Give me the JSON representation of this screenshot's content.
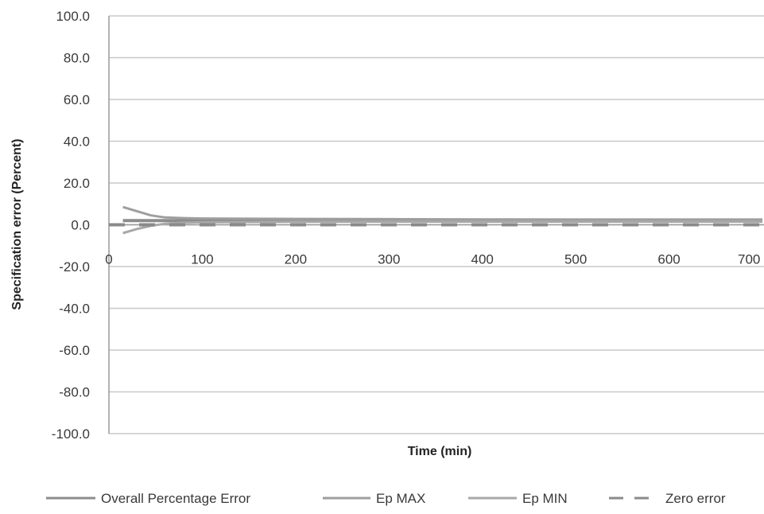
{
  "chart_data": {
    "type": "line",
    "xlabel": "Time (min)",
    "ylabel": "Specification error (Percent)",
    "xlim": [
      0,
      700
    ],
    "ylim": [
      -100,
      100
    ],
    "x_ticks": [
      "0",
      "100",
      "200",
      "300",
      "400",
      "500",
      "600",
      "700"
    ],
    "y_ticks": [
      "100.0",
      "80.0",
      "60.0",
      "40.0",
      "20.0",
      "0.0",
      "-20.0",
      "-40.0",
      "-60.0",
      "-80.0",
      "-100.0"
    ],
    "grid": true,
    "legend_position": "bottom",
    "series": [
      {
        "name": "Overall Percentage Error",
        "color": "#8c8c8c",
        "style": "solid",
        "x": [
          15,
          30,
          60,
          100,
          200,
          300,
          400,
          500,
          600,
          700
        ],
        "y": [
          2.0,
          2.0,
          2.0,
          2.0,
          2.0,
          2.0,
          2.0,
          2.0,
          2.0,
          2.0
        ]
      },
      {
        "name": "Ep MAX",
        "color": "#9e9e9e",
        "style": "solid",
        "x": [
          15,
          30,
          45,
          60,
          80,
          100,
          200,
          300,
          400,
          500,
          600,
          700
        ],
        "y": [
          8.5,
          6.5,
          4.5,
          3.5,
          3.2,
          3.0,
          2.8,
          2.7,
          2.6,
          2.5,
          2.5,
          2.5
        ]
      },
      {
        "name": "Ep MIN",
        "color": "#a8a8a8",
        "style": "solid",
        "x": [
          15,
          30,
          45,
          60,
          80,
          100,
          200,
          300,
          400,
          500,
          600,
          700
        ],
        "y": [
          -4.0,
          -2.0,
          -0.5,
          0.5,
          1.0,
          1.2,
          1.4,
          1.5,
          1.5,
          1.5,
          1.5,
          1.5
        ]
      },
      {
        "name": "Zero error",
        "color": "#8a8a8a",
        "style": "dashed",
        "x": [
          0,
          700
        ],
        "y": [
          0,
          0
        ]
      }
    ]
  }
}
